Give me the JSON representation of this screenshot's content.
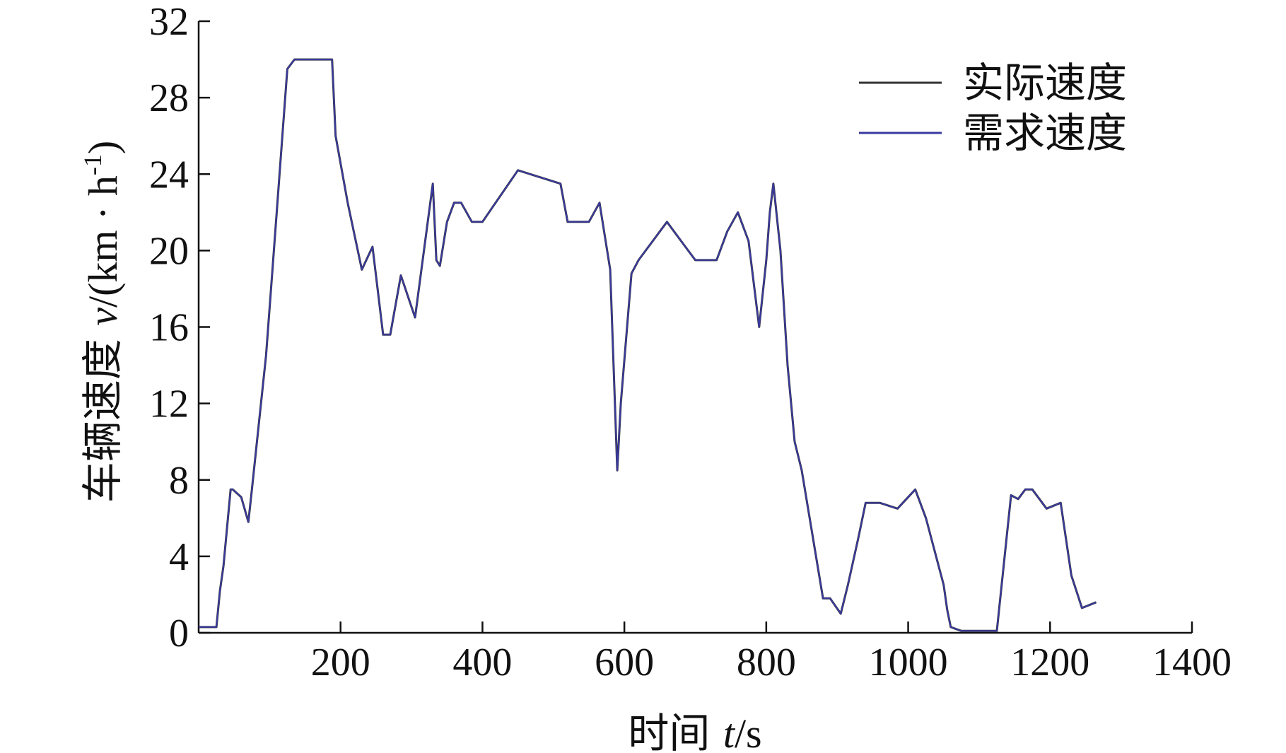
{
  "chart_data": {
    "type": "line",
    "title": "",
    "xlabel": "时间 t/s",
    "xlabel_parts": {
      "prefix": "时间 ",
      "var": "t",
      "suffix": "/s"
    },
    "ylabel": "车辆速度 v/(km · h-1)",
    "ylabel_parts": {
      "prefix": "车辆速度 ",
      "var": "v",
      "unit": "/(km · h",
      "sup": "-1",
      "close": ")"
    },
    "xlim": [
      0,
      1400
    ],
    "ylim": [
      0,
      32
    ],
    "xticks": [
      200,
      400,
      600,
      800,
      1000,
      1200,
      1400
    ],
    "yticks": [
      0,
      4,
      8,
      12,
      16,
      20,
      24,
      28,
      32
    ],
    "legend_position": "top-right",
    "series": [
      {
        "name": "实际速度",
        "color": "#333333",
        "x": [
          0,
          25,
          30,
          35,
          45,
          48,
          60,
          70,
          75,
          95,
          105,
          115,
          125,
          135,
          140,
          188,
          193,
          210,
          230,
          245,
          260,
          270,
          285,
          305,
          330,
          335,
          340,
          350,
          360,
          370,
          385,
          400,
          450,
          510,
          520,
          550,
          565,
          580,
          590,
          595,
          610,
          620,
          640,
          660,
          680,
          700,
          730,
          745,
          760,
          775,
          790,
          800,
          805,
          810,
          820,
          830,
          840,
          850,
          880,
          890,
          905,
          915,
          930,
          940,
          960,
          985,
          1010,
          1025,
          1050,
          1055,
          1060,
          1075,
          1085,
          1100,
          1125,
          1145,
          1155,
          1165,
          1175,
          1195,
          1215,
          1230,
          1245,
          1265
        ],
        "y": [
          0.3,
          0.3,
          2.2,
          3.5,
          7.5,
          7.5,
          7.1,
          5.8,
          7.5,
          14.5,
          19.5,
          24.5,
          29.5,
          30,
          30,
          30,
          26,
          22.5,
          19,
          20.2,
          15.6,
          15.6,
          18.7,
          16.5,
          23.5,
          19.5,
          19.2,
          21.5,
          22.5,
          22.5,
          21.5,
          21.5,
          24.2,
          23.5,
          21.5,
          21.5,
          22.5,
          19,
          8.5,
          12,
          18.8,
          19.5,
          20.5,
          21.5,
          20.5,
          19.5,
          19.5,
          21,
          22,
          20.5,
          16,
          19.5,
          22,
          23.5,
          20,
          14,
          10,
          8.5,
          1.8,
          1.8,
          1.0,
          2.5,
          5,
          6.8,
          6.8,
          6.5,
          7.5,
          6,
          2.5,
          1.2,
          0.3,
          0.1,
          0.1,
          0.1,
          0.1,
          7.2,
          7.0,
          7.5,
          7.5,
          6.5,
          6.8,
          3,
          1.3,
          1.6
        ]
      },
      {
        "name": "需求速度",
        "color": "#3a3aa0",
        "x": [
          0,
          25,
          30,
          35,
          45,
          48,
          60,
          70,
          75,
          95,
          105,
          115,
          125,
          135,
          140,
          188,
          193,
          210,
          230,
          245,
          260,
          270,
          285,
          305,
          330,
          335,
          340,
          350,
          360,
          370,
          385,
          400,
          450,
          510,
          520,
          550,
          565,
          580,
          590,
          595,
          610,
          620,
          640,
          660,
          680,
          700,
          730,
          745,
          760,
          775,
          790,
          800,
          805,
          810,
          820,
          830,
          840,
          850,
          880,
          890,
          905,
          915,
          930,
          940,
          960,
          985,
          1010,
          1025,
          1050,
          1055,
          1060,
          1075,
          1085,
          1100,
          1125,
          1145,
          1155,
          1165,
          1175,
          1195,
          1215,
          1230,
          1245,
          1265
        ],
        "y": [
          0.3,
          0.3,
          2.2,
          3.5,
          7.5,
          7.5,
          7.1,
          5.8,
          7.5,
          14.5,
          19.5,
          24.5,
          29.5,
          30,
          30,
          30,
          26,
          22.5,
          19,
          20.2,
          15.6,
          15.6,
          18.7,
          16.5,
          23.5,
          19.5,
          19.2,
          21.5,
          22.5,
          22.5,
          21.5,
          21.5,
          24.2,
          23.5,
          21.5,
          21.5,
          22.5,
          19,
          8.5,
          12,
          18.8,
          19.5,
          20.5,
          21.5,
          20.5,
          19.5,
          19.5,
          21,
          22,
          20.5,
          16,
          19.5,
          22,
          23.5,
          20,
          14,
          10,
          8.5,
          1.8,
          1.8,
          1.0,
          2.5,
          5,
          6.8,
          6.8,
          6.5,
          7.5,
          6,
          2.5,
          1.2,
          0.3,
          0.1,
          0.1,
          0.1,
          0.1,
          7.2,
          7.0,
          7.5,
          7.5,
          6.5,
          6.8,
          3,
          1.3,
          1.6
        ]
      }
    ]
  }
}
